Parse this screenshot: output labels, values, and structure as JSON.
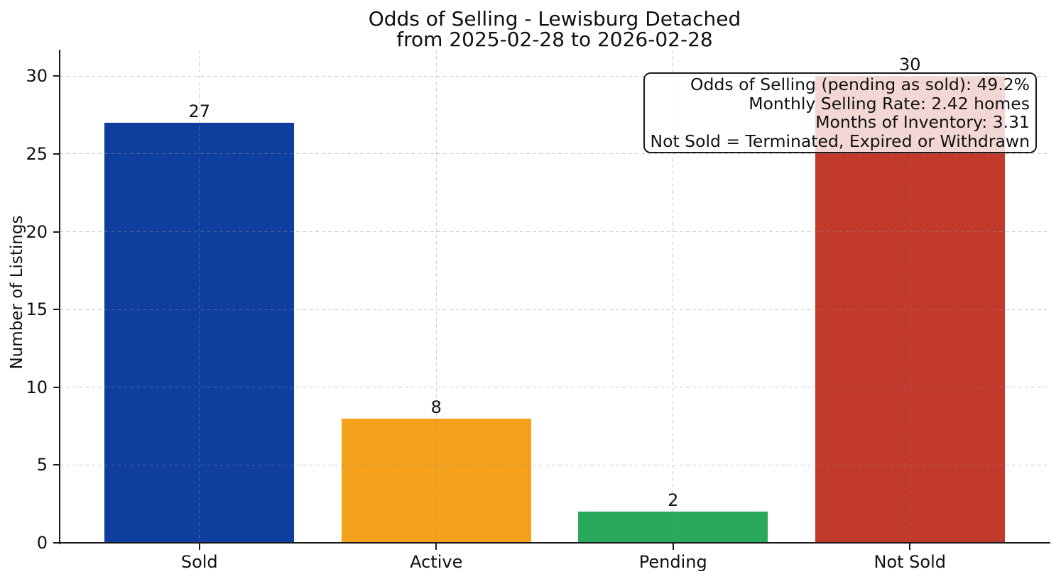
{
  "chart_data": {
    "type": "bar",
    "title": "Odds of Selling - Lewisburg Detached",
    "subtitle": "from 2025-02-28 to 2026-02-28",
    "categories": [
      "Sold",
      "Active",
      "Pending",
      "Not Sold"
    ],
    "values": [
      27,
      8,
      2,
      30
    ],
    "bar_colors": [
      "#0e3f9e",
      "#f4a11b",
      "#2aa95c",
      "#c13a2c"
    ],
    "xlabel": "",
    "ylabel": "Number of Listings",
    "yticks": [
      0,
      5,
      10,
      15,
      20,
      25,
      30
    ],
    "ylim": [
      0,
      31.7
    ],
    "grid": true,
    "grid_style": "dashed",
    "legend_position": "none",
    "annotation_box": {
      "position": "top-right",
      "lines": [
        "Odds of Selling (pending as sold): 49.2%",
        "Monthly Selling Rate: 2.42 homes",
        "Months of Inventory: 3.31",
        "Not Sold = Terminated, Expired or Withdrawn"
      ]
    }
  },
  "colors": {
    "background": "#ffffff",
    "axis": "#1a1a1a",
    "gridline": "#919191",
    "text": "#111111",
    "annotation_background": "rgba(255,255,255,0.8)"
  }
}
